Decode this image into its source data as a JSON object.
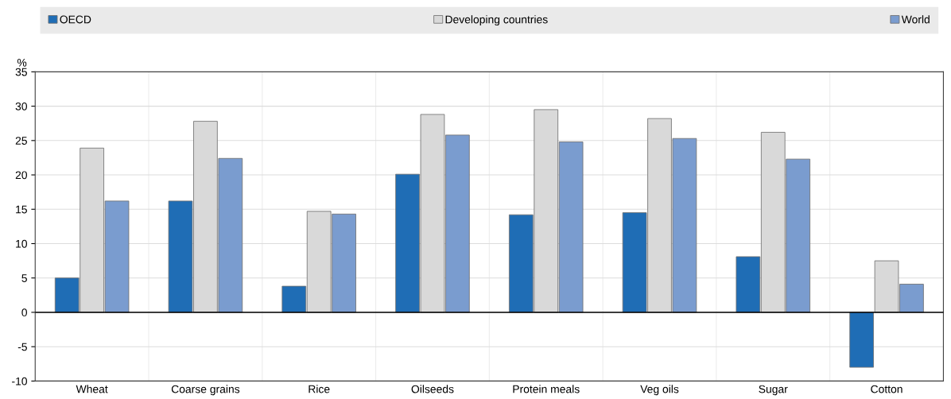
{
  "chart_data": {
    "type": "bar",
    "ylabel": "%",
    "categories": [
      "Wheat",
      "Coarse grains",
      "Rice",
      "Oilseeds",
      "Protein meals",
      "Veg oils",
      "Sugar",
      "Cotton"
    ],
    "series": [
      {
        "name": "OECD",
        "color": "#1f6db5",
        "values": [
          5.0,
          16.2,
          3.8,
          20.1,
          14.2,
          14.5,
          8.1,
          -8.0
        ]
      },
      {
        "name": "Developing countries",
        "color": "#d9d9d9",
        "values": [
          23.9,
          27.8,
          14.7,
          28.8,
          29.5,
          28.2,
          26.2,
          7.5
        ]
      },
      {
        "name": "World",
        "color": "#7a9ccf",
        "values": [
          16.2,
          22.4,
          14.3,
          25.8,
          24.8,
          25.3,
          22.3,
          4.1
        ]
      }
    ],
    "ylim": [
      -10,
      35
    ],
    "yticks": [
      -10,
      -5,
      0,
      5,
      10,
      15,
      20,
      25,
      30,
      35
    ],
    "grid": "y",
    "legend": "top"
  }
}
